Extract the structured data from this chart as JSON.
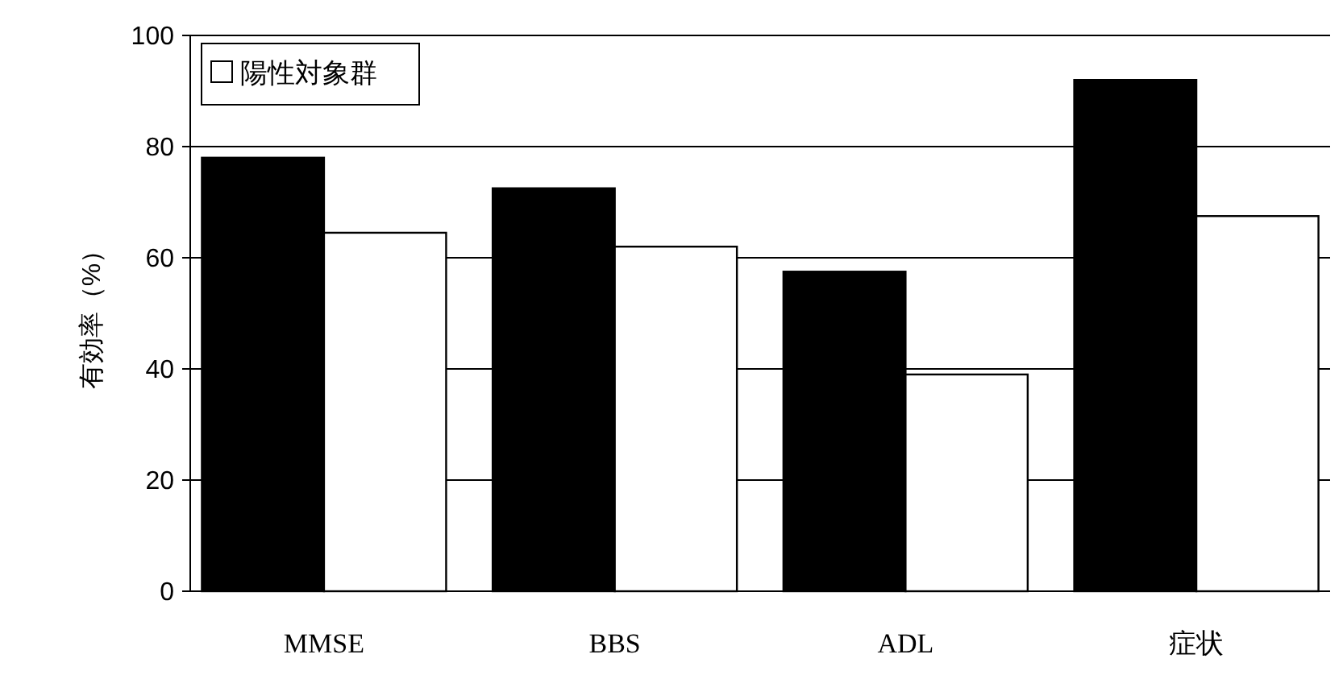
{
  "chart_data": {
    "type": "bar",
    "ylabel": "有効率（%）",
    "categories": [
      "MMSE",
      "BBS",
      "ADL",
      "症状"
    ],
    "series": [
      {
        "color": "#000000",
        "values": [
          78,
          72.5,
          57.5,
          92
        ]
      },
      {
        "name": "陽性対象群",
        "color": "#ffffff",
        "values": [
          64.5,
          62,
          39,
          67.5
        ]
      }
    ],
    "ylim": [
      0,
      100
    ],
    "yticks": [
      0,
      20,
      40,
      60,
      80,
      100
    ],
    "grid": "y",
    "legend": "top left"
  }
}
